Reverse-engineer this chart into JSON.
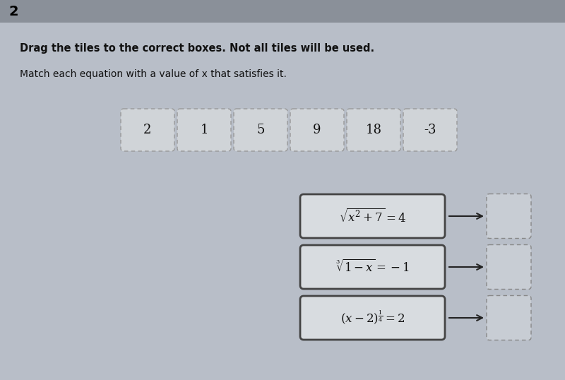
{
  "background_color": "#b8bec8",
  "header_bg_color": "#8a9099",
  "header_text": "2",
  "title_bold": "Drag the tiles to the correct boxes. Not all tiles will be used.",
  "subtitle": "Match each equation with a value of x that satisfies it.",
  "tiles": [
    "2",
    "1",
    "5",
    "9",
    "18",
    "-3"
  ],
  "tile_box_color": "#d0d4d8",
  "tile_border_color": "#999999",
  "eq1": "$\\sqrt{x^2+7}=4$",
  "eq2": "$\\sqrt[3]{1-x}=-1$",
  "eq3": "$(x-2)^{\\frac{1}{4}}=2$",
  "eq_box_color": "#d8dce0",
  "eq_border_color": "#444444",
  "answer_box_color": "#c8cdd4",
  "answer_border_color": "#888888",
  "arrow_color": "#222222",
  "fig_width": 8.0,
  "fig_height": 5.38,
  "dpi": 100
}
